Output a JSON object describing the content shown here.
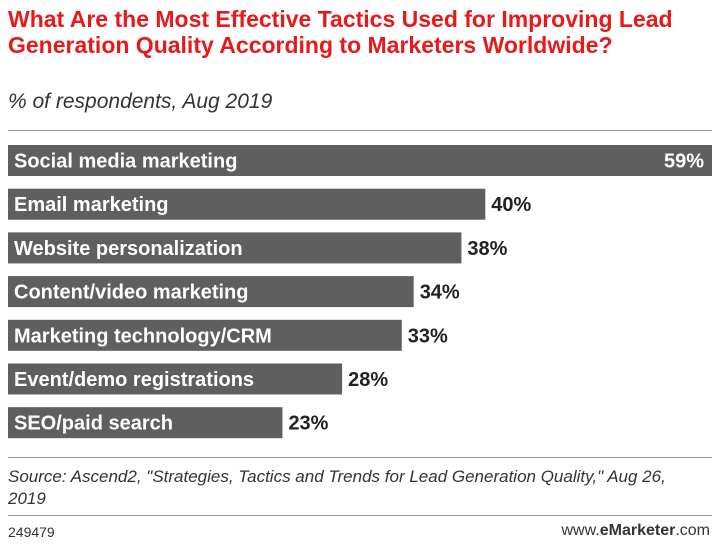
{
  "header": {
    "title": "What Are the Most Effective Tactics Used for Improving Lead Generation Quality According to Marketers Worldwide?",
    "subtitle": "% of respondents, Aug 2019"
  },
  "chart_data": {
    "type": "bar",
    "orientation": "horizontal",
    "title": "What Are the Most Effective Tactics Used for Improving Lead Generation Quality According to Marketers Worldwide?",
    "subtitle": "% of respondents, Aug 2019",
    "categories": [
      "Social media marketing",
      "Email marketing",
      "Website personalization",
      "Content/video marketing",
      "Marketing technology/CRM",
      "Event/demo registrations",
      "SEO/paid search"
    ],
    "values": [
      59,
      40,
      38,
      34,
      33,
      28,
      23
    ],
    "value_labels": [
      "59%",
      "40%",
      "38%",
      "34%",
      "33%",
      "28%",
      "23%"
    ],
    "unit": "%",
    "xlim": [
      0,
      59
    ],
    "bar_color": "#5f5f5f",
    "label_color": "#ffffff",
    "grid": false,
    "legend": "none"
  },
  "footer": {
    "source": "Source: Ascend2, \"Strategies, Tactics and Trends for Lead Generation Quality,\" Aug 26, 2019",
    "id": "249479",
    "brand_prefix": "www.",
    "brand_name": "eMarketer",
    "brand_suffix": ".com"
  },
  "colors": {
    "title": "#e8191b",
    "bar": "#5f5f5f"
  }
}
